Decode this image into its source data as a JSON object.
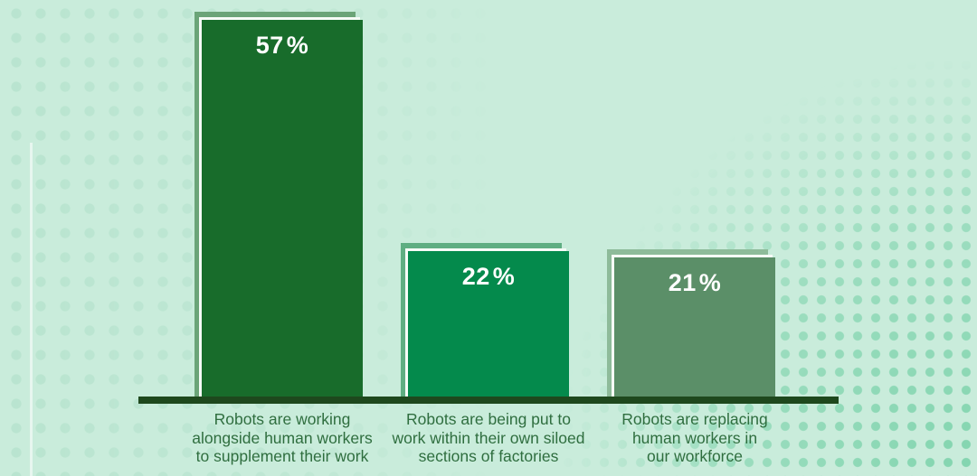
{
  "chart_data": {
    "type": "bar",
    "title": "",
    "xlabel": "",
    "ylabel": "",
    "unit": "%",
    "values": [
      57,
      22,
      21
    ],
    "value_labels": [
      "57%",
      "22%",
      "21%"
    ],
    "categories": [
      "Robots are working alongside human workers to supplement their work",
      "Robots are being put to work within their own siloed sections of factories",
      "Robots are replacing human workers in our workforce"
    ],
    "categories_lines": [
      [
        "Robots are working",
        "alongside human workers",
        "to supplement their work"
      ],
      [
        "Robots are being put to",
        "work within their own siloed",
        "sections of factories"
      ],
      [
        "Robots are replacing",
        "human workers in",
        "our workforce"
      ]
    ],
    "ylim": [
      0,
      60
    ],
    "grid": false,
    "legend_position": "none",
    "colors": {
      "background": "#c9ecdb",
      "bar_fills": [
        "#186c2b",
        "#048a4c",
        "#5b8f68"
      ],
      "bar_shadows": [
        "#6ba478",
        "#5fae82",
        "#8ebb9a"
      ],
      "bar_sheet": "#f6fbf7",
      "value_label": "#ffffff",
      "category_label": "#2f6e3f",
      "axis_line": "#1e481d",
      "dots_left": "#b7e3ce",
      "dots_right": "#7ed3ac"
    }
  }
}
